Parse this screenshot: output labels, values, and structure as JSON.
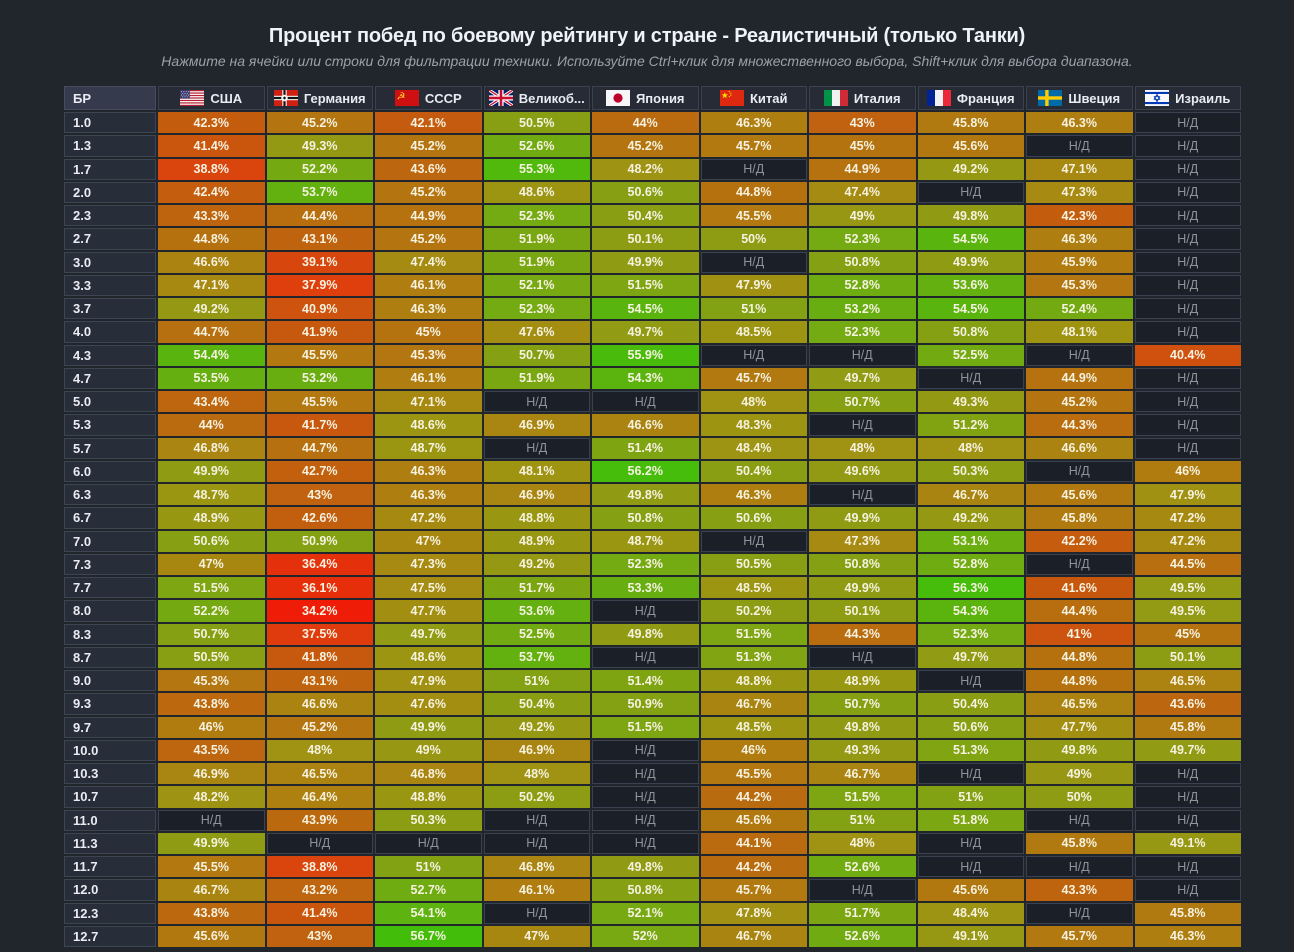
{
  "page": {
    "title": "Процент побед по боевому рейтингу и стране - Реалистичный (только Танки)",
    "subtitle": "Нажмите на ячейки или строки для фильтрации техники. Используйте Ctrl+клик для множественного выбора, Shift+клик для выбора диапазона."
  },
  "table": {
    "br_header": "БР",
    "na_label": "Н/Д",
    "columns": [
      {
        "id": "usa",
        "label": "США",
        "flag": "usa-flag-icon"
      },
      {
        "id": "germany",
        "label": "Германия",
        "flag": "germany-flag-icon"
      },
      {
        "id": "ussr",
        "label": "СССР",
        "flag": "ussr-flag-icon"
      },
      {
        "id": "uk",
        "label": "Великоб...",
        "flag": "uk-flag-icon"
      },
      {
        "id": "japan",
        "label": "Япония",
        "flag": "japan-flag-icon"
      },
      {
        "id": "china",
        "label": "Китай",
        "flag": "china-flag-icon"
      },
      {
        "id": "italy",
        "label": "Италия",
        "flag": "italy-flag-icon"
      },
      {
        "id": "france",
        "label": "Франция",
        "flag": "france-flag-icon"
      },
      {
        "id": "sweden",
        "label": "Швеция",
        "flag": "sweden-flag-icon"
      },
      {
        "id": "israel",
        "label": "Израиль",
        "flag": "israel-flag-icon"
      }
    ],
    "rows": [
      {
        "br": "1.0",
        "values": [
          "42.3%",
          "45.2%",
          "42.1%",
          "50.5%",
          "44%",
          "46.3%",
          "43%",
          "45.8%",
          "46.3%",
          "Н/Д"
        ]
      },
      {
        "br": "1.3",
        "values": [
          "41.4%",
          "49.3%",
          "45.2%",
          "52.6%",
          "45.2%",
          "45.7%",
          "45%",
          "45.6%",
          "Н/Д",
          "Н/Д"
        ]
      },
      {
        "br": "1.7",
        "values": [
          "38.8%",
          "52.2%",
          "43.6%",
          "55.3%",
          "48.2%",
          "Н/Д",
          "44.9%",
          "49.2%",
          "47.1%",
          "Н/Д"
        ]
      },
      {
        "br": "2.0",
        "values": [
          "42.4%",
          "53.7%",
          "45.2%",
          "48.6%",
          "50.6%",
          "44.8%",
          "47.4%",
          "Н/Д",
          "47.3%",
          "Н/Д"
        ]
      },
      {
        "br": "2.3",
        "values": [
          "43.3%",
          "44.4%",
          "44.9%",
          "52.3%",
          "50.4%",
          "45.5%",
          "49%",
          "49.8%",
          "42.3%",
          "Н/Д"
        ]
      },
      {
        "br": "2.7",
        "values": [
          "44.8%",
          "43.1%",
          "45.2%",
          "51.9%",
          "50.1%",
          "50%",
          "52.3%",
          "54.5%",
          "46.3%",
          "Н/Д"
        ]
      },
      {
        "br": "3.0",
        "values": [
          "46.6%",
          "39.1%",
          "47.4%",
          "51.9%",
          "49.9%",
          "Н/Д",
          "50.8%",
          "49.9%",
          "45.9%",
          "Н/Д"
        ]
      },
      {
        "br": "3.3",
        "values": [
          "47.1%",
          "37.9%",
          "46.1%",
          "52.1%",
          "51.5%",
          "47.9%",
          "52.8%",
          "53.6%",
          "45.3%",
          "Н/Д"
        ]
      },
      {
        "br": "3.7",
        "values": [
          "49.2%",
          "40.9%",
          "46.3%",
          "52.3%",
          "54.5%",
          "51%",
          "53.2%",
          "54.5%",
          "52.4%",
          "Н/Д"
        ]
      },
      {
        "br": "4.0",
        "values": [
          "44.7%",
          "41.9%",
          "45%",
          "47.6%",
          "49.7%",
          "48.5%",
          "52.3%",
          "50.8%",
          "48.1%",
          "Н/Д"
        ]
      },
      {
        "br": "4.3",
        "values": [
          "54.4%",
          "45.5%",
          "45.3%",
          "50.7%",
          "55.9%",
          "Н/Д",
          "Н/Д",
          "52.5%",
          "Н/Д",
          "40.4%"
        ]
      },
      {
        "br": "4.7",
        "values": [
          "53.5%",
          "53.2%",
          "46.1%",
          "51.9%",
          "54.3%",
          "45.7%",
          "49.7%",
          "Н/Д",
          "44.9%",
          "Н/Д"
        ]
      },
      {
        "br": "5.0",
        "values": [
          "43.4%",
          "45.5%",
          "47.1%",
          "Н/Д",
          "Н/Д",
          "48%",
          "50.7%",
          "49.3%",
          "45.2%",
          "Н/Д"
        ]
      },
      {
        "br": "5.3",
        "values": [
          "44%",
          "41.7%",
          "48.6%",
          "46.9%",
          "46.6%",
          "48.3%",
          "Н/Д",
          "51.2%",
          "44.3%",
          "Н/Д"
        ]
      },
      {
        "br": "5.7",
        "values": [
          "46.8%",
          "44.7%",
          "48.7%",
          "Н/Д",
          "51.4%",
          "48.4%",
          "48%",
          "48%",
          "46.6%",
          "Н/Д"
        ]
      },
      {
        "br": "6.0",
        "values": [
          "49.9%",
          "42.7%",
          "46.3%",
          "48.1%",
          "56.2%",
          "50.4%",
          "49.6%",
          "50.3%",
          "Н/Д",
          "46%"
        ]
      },
      {
        "br": "6.3",
        "values": [
          "48.7%",
          "43%",
          "46.3%",
          "46.9%",
          "49.8%",
          "46.3%",
          "Н/Д",
          "46.7%",
          "45.6%",
          "47.9%"
        ]
      },
      {
        "br": "6.7",
        "values": [
          "48.9%",
          "42.6%",
          "47.2%",
          "48.8%",
          "50.8%",
          "50.6%",
          "49.9%",
          "49.2%",
          "45.8%",
          "47.2%"
        ]
      },
      {
        "br": "7.0",
        "values": [
          "50.6%",
          "50.9%",
          "47%",
          "48.9%",
          "48.7%",
          "Н/Д",
          "47.3%",
          "53.1%",
          "42.2%",
          "47.2%"
        ]
      },
      {
        "br": "7.3",
        "values": [
          "47%",
          "36.4%",
          "47.3%",
          "49.2%",
          "52.3%",
          "50.5%",
          "50.8%",
          "52.8%",
          "Н/Д",
          "44.5%"
        ]
      },
      {
        "br": "7.7",
        "values": [
          "51.5%",
          "36.1%",
          "47.5%",
          "51.7%",
          "53.3%",
          "48.5%",
          "49.9%",
          "56.3%",
          "41.6%",
          "49.5%"
        ]
      },
      {
        "br": "8.0",
        "values": [
          "52.2%",
          "34.2%",
          "47.7%",
          "53.6%",
          "Н/Д",
          "50.2%",
          "50.1%",
          "54.3%",
          "44.4%",
          "49.5%"
        ]
      },
      {
        "br": "8.3",
        "values": [
          "50.7%",
          "37.5%",
          "49.7%",
          "52.5%",
          "49.8%",
          "51.5%",
          "44.3%",
          "52.3%",
          "41%",
          "45%"
        ]
      },
      {
        "br": "8.7",
        "values": [
          "50.5%",
          "41.8%",
          "48.6%",
          "53.7%",
          "Н/Д",
          "51.3%",
          "Н/Д",
          "49.7%",
          "44.8%",
          "50.1%"
        ]
      },
      {
        "br": "9.0",
        "values": [
          "45.3%",
          "43.1%",
          "47.9%",
          "51%",
          "51.4%",
          "48.8%",
          "48.9%",
          "Н/Д",
          "44.8%",
          "46.5%"
        ]
      },
      {
        "br": "9.3",
        "values": [
          "43.8%",
          "46.6%",
          "47.6%",
          "50.4%",
          "50.9%",
          "46.7%",
          "50.7%",
          "50.4%",
          "46.5%",
          "43.6%"
        ]
      },
      {
        "br": "9.7",
        "values": [
          "46%",
          "45.2%",
          "49.9%",
          "49.2%",
          "51.5%",
          "48.5%",
          "49.8%",
          "50.6%",
          "47.7%",
          "45.8%"
        ]
      },
      {
        "br": "10.0",
        "values": [
          "43.5%",
          "48%",
          "49%",
          "46.9%",
          "Н/Д",
          "46%",
          "49.3%",
          "51.3%",
          "49.8%",
          "49.7%"
        ]
      },
      {
        "br": "10.3",
        "values": [
          "46.9%",
          "46.5%",
          "46.8%",
          "48%",
          "Н/Д",
          "45.5%",
          "46.7%",
          "Н/Д",
          "49%",
          "Н/Д"
        ]
      },
      {
        "br": "10.7",
        "values": [
          "48.2%",
          "46.4%",
          "48.8%",
          "50.2%",
          "Н/Д",
          "44.2%",
          "51.5%",
          "51%",
          "50%",
          "Н/Д"
        ]
      },
      {
        "br": "11.0",
        "values": [
          "Н/Д",
          "43.9%",
          "50.3%",
          "Н/Д",
          "Н/Д",
          "45.6%",
          "51%",
          "51.8%",
          "Н/Д",
          "Н/Д"
        ]
      },
      {
        "br": "11.3",
        "values": [
          "49.9%",
          "Н/Д",
          "Н/Д",
          "Н/Д",
          "Н/Д",
          "44.1%",
          "48%",
          "Н/Д",
          "45.8%",
          "49.1%"
        ]
      },
      {
        "br": "11.7",
        "values": [
          "45.5%",
          "38.8%",
          "51%",
          "46.8%",
          "49.8%",
          "44.2%",
          "52.6%",
          "Н/Д",
          "Н/Д",
          "Н/Д"
        ]
      },
      {
        "br": "12.0",
        "values": [
          "46.7%",
          "43.2%",
          "52.7%",
          "46.1%",
          "50.8%",
          "45.7%",
          "Н/Д",
          "45.6%",
          "43.3%",
          "Н/Д"
        ]
      },
      {
        "br": "12.3",
        "values": [
          "43.8%",
          "41.4%",
          "54.1%",
          "Н/Д",
          "52.1%",
          "47.8%",
          "51.7%",
          "48.4%",
          "Н/Д",
          "45.8%"
        ]
      },
      {
        "br": "12.7",
        "values": [
          "45.6%",
          "43%",
          "56.7%",
          "47%",
          "52%",
          "46.7%",
          "52.6%",
          "49.1%",
          "45.7%",
          "46.3%"
        ]
      }
    ]
  },
  "colors": {
    "page_background": "#21252c",
    "value_cell_text": "#f6f2e0",
    "na_cell": {
      "bg": "#1b1f27",
      "border": "#3a4150",
      "text": "#8e939c"
    },
    "scale": [
      [
        34,
        "#f01a08"
      ],
      [
        38,
        "#de400d"
      ],
      [
        42,
        "#c65a0e"
      ],
      [
        44,
        "#ba6a0f"
      ],
      [
        46,
        "#b07c10"
      ],
      [
        48,
        "#a09212"
      ],
      [
        50,
        "#8e9c13"
      ],
      [
        52,
        "#78a812"
      ],
      [
        54,
        "#5eb20f"
      ],
      [
        56,
        "#48bc0b"
      ],
      [
        58,
        "#38c209"
      ]
    ]
  }
}
